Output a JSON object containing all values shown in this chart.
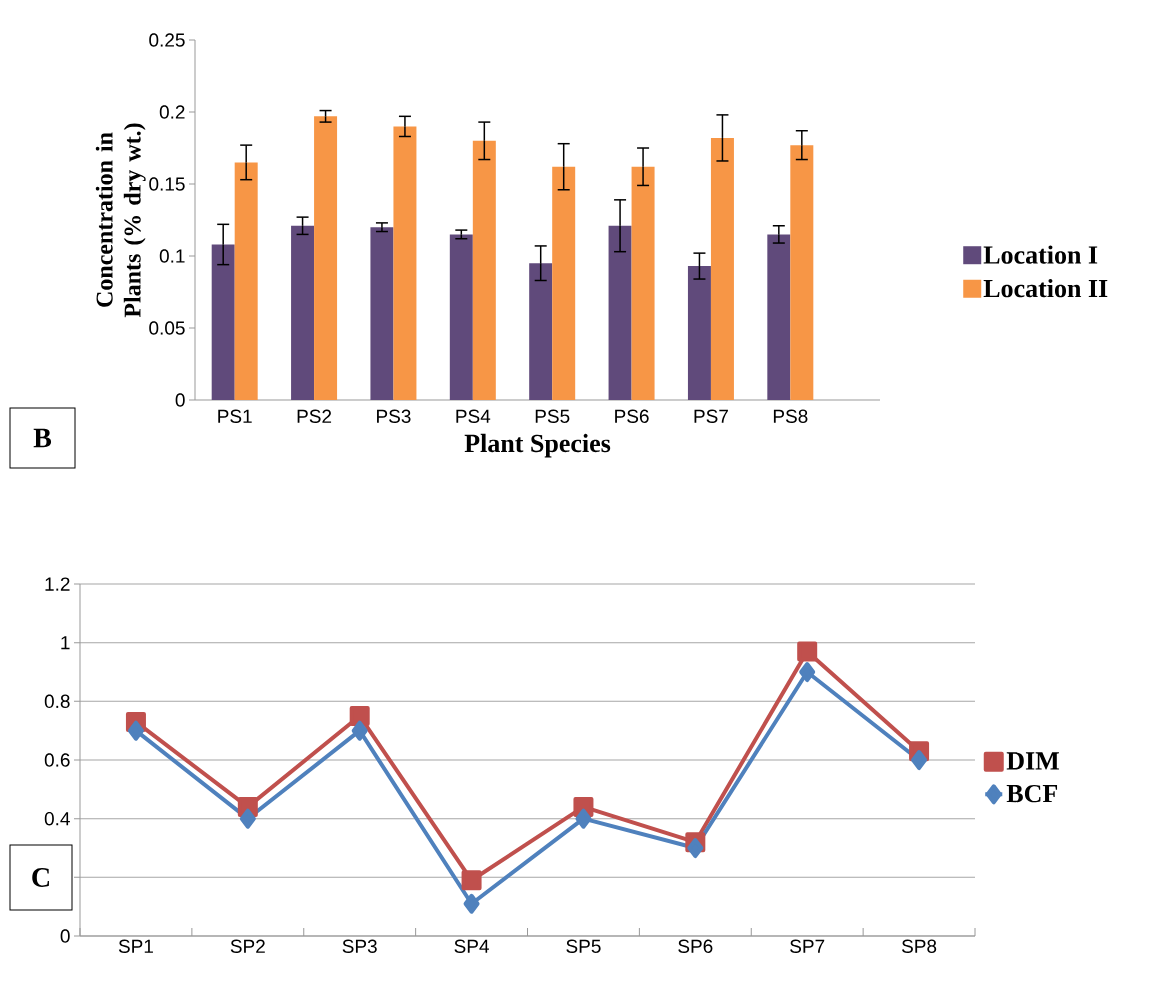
{
  "chart_data": [
    {
      "type": "bar",
      "xlabel": "Plant Species",
      "ylabel": "Concentration in Plants (% dry wt.)",
      "categories": [
        "PS1",
        "PS2",
        "PS3",
        "PS4",
        "PS5",
        "PS6",
        "PS7",
        "PS8"
      ],
      "series": [
        {
          "name": "Location I",
          "color": "#604a7b",
          "values": [
            0.108,
            0.121,
            0.12,
            0.115,
            0.095,
            0.121,
            0.093,
            0.115
          ],
          "errors": [
            0.014,
            0.006,
            0.003,
            0.003,
            0.012,
            0.018,
            0.009,
            0.006
          ]
        },
        {
          "name": "Location II",
          "color": "#f79646",
          "values": [
            0.165,
            0.197,
            0.19,
            0.18,
            0.162,
            0.162,
            0.182,
            0.177
          ],
          "errors": [
            0.012,
            0.004,
            0.007,
            0.013,
            0.016,
            0.013,
            0.016,
            0.01
          ]
        }
      ],
      "ylim": [
        0,
        0.25
      ],
      "yticks": [
        0,
        0.05,
        0.1,
        0.15,
        0.2,
        0.25
      ],
      "legend": "right",
      "annotations": [
        "B"
      ]
    },
    {
      "type": "line",
      "categories": [
        "SP1",
        "SP2",
        "SP3",
        "SP4",
        "SP5",
        "SP6",
        "SP7",
        "SP8"
      ],
      "series": [
        {
          "name": "DIM",
          "color": "#c0504d",
          "marker": "square",
          "values": [
            0.73,
            0.44,
            0.75,
            0.19,
            0.44,
            0.32,
            0.97,
            0.63
          ]
        },
        {
          "name": "BCF",
          "color": "#4f81bd",
          "marker": "diamond",
          "values": [
            0.7,
            0.4,
            0.7,
            0.11,
            0.4,
            0.3,
            0.9,
            0.6
          ]
        }
      ],
      "ylim": [
        0,
        1.2
      ],
      "yticks": [
        0,
        {
          "value": 0.2,
          "label": null
        },
        0.4,
        0.6,
        0.8,
        1,
        1.2
      ],
      "grid": "y",
      "legend": "right",
      "annotations": [
        "C"
      ]
    }
  ]
}
